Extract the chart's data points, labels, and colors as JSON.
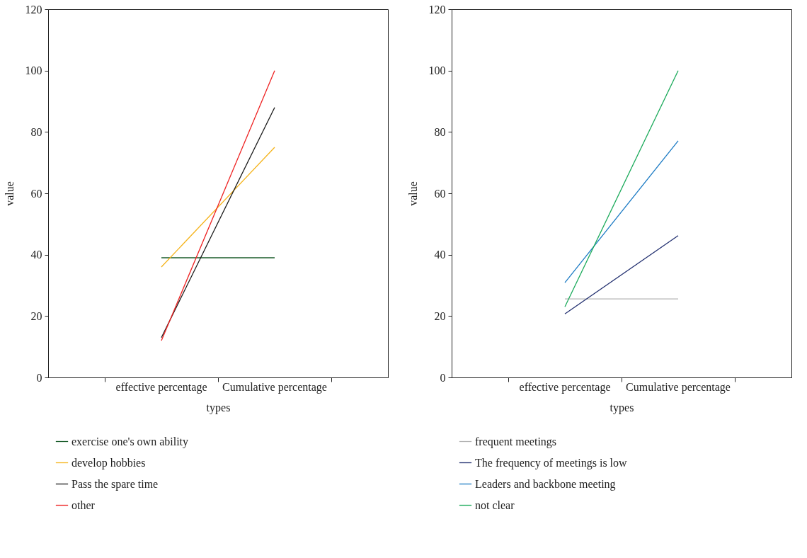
{
  "chart_data": [
    {
      "type": "line",
      "xlabel": "types",
      "ylabel": "value",
      "categories": [
        "effective percentage",
        "Cumulative percentage"
      ],
      "ylim": [
        0,
        120
      ],
      "yticks": [
        0,
        20,
        40,
        60,
        80,
        100,
        120
      ],
      "legend": "bottom left",
      "series": [
        {
          "name": "exercise one's own ability",
          "color": "#1a5c2a",
          "values": [
            39,
            39
          ]
        },
        {
          "name": "develop hobbies",
          "color": "#f5b31a",
          "values": [
            36,
            75
          ]
        },
        {
          "name": "Pass the spare time",
          "color": "#1a1a1a",
          "values": [
            13,
            88
          ]
        },
        {
          "name": "other",
          "color": "#ee2222",
          "values": [
            12,
            100
          ]
        }
      ]
    },
    {
      "type": "line",
      "xlabel": "types",
      "ylabel": "value",
      "categories": [
        "effective percentage",
        "Cumulative percentage"
      ],
      "ylim": [
        0,
        120
      ],
      "yticks": [
        0,
        20,
        40,
        60,
        80,
        100,
        120
      ],
      "legend": "bottom left",
      "series": [
        {
          "name": "frequent meetings",
          "color": "#b3b3b3",
          "values": [
            25.6,
            25.6
          ]
        },
        {
          "name": "The frequency of meetings is low",
          "color": "#1f2d6e",
          "values": [
            20.7,
            46.2
          ]
        },
        {
          "name": "Leaders and backbone meeting",
          "color": "#1a7ac4",
          "values": [
            30.9,
            77.1
          ]
        },
        {
          "name": "not clear",
          "color": "#1aaa5a",
          "values": [
            23,
            100
          ]
        }
      ]
    }
  ]
}
